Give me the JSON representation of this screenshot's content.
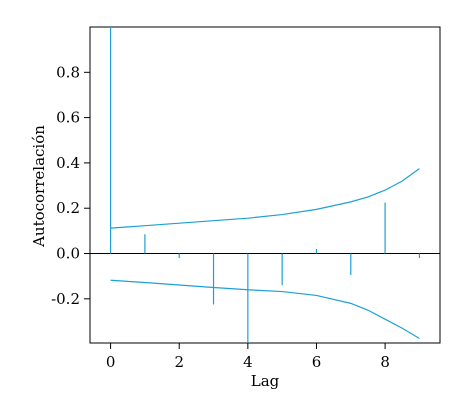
{
  "chart_data": {
    "type": "bar",
    "xlabel": "Lag",
    "ylabel": "Autocorrelación",
    "xlim": [
      -0.6,
      9.6
    ],
    "ylim": [
      -0.395,
      1.0
    ],
    "x_ticks": [
      0,
      2,
      4,
      6,
      8
    ],
    "y_ticks": [
      -0.2,
      0.0,
      0.2,
      0.4,
      0.6,
      0.8
    ],
    "y_tick_labels": [
      "-0.2",
      "0.0",
      "0.2",
      "0.4",
      "0.6",
      "0.8"
    ],
    "lags": [
      0,
      1,
      2,
      3,
      4,
      5,
      6,
      7,
      8,
      9
    ],
    "acf": [
      1.0,
      0.085,
      -0.02,
      -0.225,
      -0.395,
      -0.14,
      0.02,
      -0.095,
      0.225,
      -0.02
    ],
    "confidence_band": {
      "lags": [
        0,
        1,
        2,
        3,
        4,
        5,
        6,
        7,
        7.5,
        8,
        8.5,
        9
      ],
      "upper": [
        0.112,
        0.123,
        0.134,
        0.145,
        0.156,
        0.172,
        0.195,
        0.228,
        0.25,
        0.28,
        0.32,
        0.375
      ],
      "lower": [
        -0.118,
        -0.128,
        -0.139,
        -0.15,
        -0.16,
        -0.168,
        -0.185,
        -0.22,
        -0.25,
        -0.29,
        -0.33,
        -0.375
      ]
    },
    "colors": {
      "bars": "#1ea0d6",
      "band": "#1ea0d6",
      "axes": "#000000"
    },
    "grid": false,
    "legend": "none"
  }
}
